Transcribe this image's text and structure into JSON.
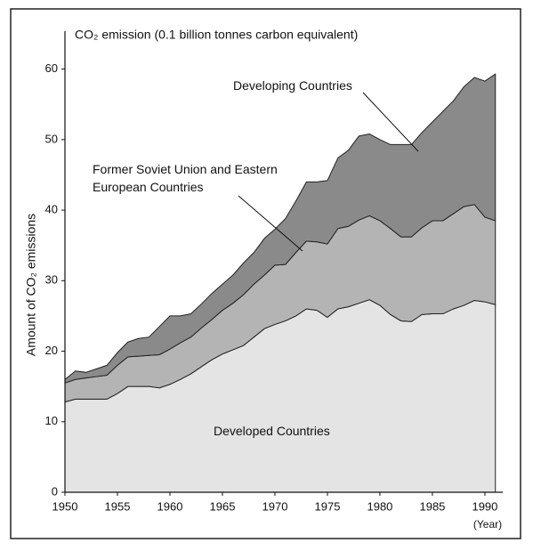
{
  "chart_data": {
    "type": "stacked-area",
    "title": "CO₂ emission (0.1 billion tonnes carbon equivalent)",
    "y_label": "Amount of CO₂ emissions",
    "x_label": "(Year)",
    "x": [
      1950,
      1951,
      1952,
      1953,
      1954,
      1955,
      1956,
      1957,
      1958,
      1959,
      1960,
      1961,
      1962,
      1963,
      1964,
      1965,
      1966,
      1967,
      1968,
      1969,
      1970,
      1971,
      1972,
      1973,
      1974,
      1975,
      1976,
      1977,
      1978,
      1979,
      1980,
      1981,
      1982,
      1983,
      1984,
      1985,
      1986,
      1987,
      1988,
      1989,
      1990,
      1991
    ],
    "series": [
      {
        "name": "Developed Countries",
        "color": "#e4e4e4",
        "values": [
          12.8,
          13.2,
          13.2,
          13.2,
          13.2,
          14.0,
          15.0,
          15.0,
          15.0,
          14.8,
          15.3,
          16.0,
          16.8,
          17.8,
          18.8,
          19.6,
          20.2,
          20.8,
          22.0,
          23.2,
          23.8,
          24.3,
          25.0,
          26.0,
          25.8,
          24.8,
          26.0,
          26.3,
          26.8,
          27.3,
          26.5,
          25.2,
          24.3,
          24.2,
          25.2,
          25.3,
          25.3,
          26.0,
          26.5,
          27.2,
          27.0,
          26.6
        ]
      },
      {
        "name": "Former Soviet Union and Eastern European Countries",
        "color": "#b4b4b4",
        "values": [
          2.7,
          2.8,
          3.0,
          3.2,
          3.4,
          4.0,
          4.2,
          4.3,
          4.4,
          4.7,
          5.0,
          5.2,
          5.2,
          5.5,
          5.7,
          6.2,
          6.6,
          7.2,
          7.5,
          7.6,
          8.4,
          8.0,
          9.0,
          9.6,
          9.7,
          10.4,
          11.4,
          11.4,
          11.8,
          11.9,
          12.0,
          12.2,
          11.9,
          12.0,
          12.3,
          13.2,
          13.2,
          13.5,
          14.0,
          13.6,
          12.0,
          11.9
        ]
      },
      {
        "name": "Developing Countries",
        "color": "#8a8a8a",
        "values": [
          0.5,
          1.2,
          0.8,
          1.1,
          1.4,
          1.8,
          2.1,
          2.5,
          2.6,
          4.0,
          4.7,
          3.8,
          3.3,
          3.4,
          3.7,
          3.7,
          4.0,
          4.5,
          4.5,
          5.2,
          5.1,
          6.5,
          7.3,
          8.4,
          8.5,
          9.0,
          10.0,
          10.8,
          11.9,
          11.6,
          11.5,
          11.9,
          13.1,
          13.1,
          13.5,
          14.0,
          15.5,
          16.0,
          17.0,
          18.0,
          19.3,
          20.8
        ]
      }
    ],
    "xlim": [
      1950,
      1991.7
    ],
    "xticks": [
      1950,
      1955,
      1960,
      1965,
      1970,
      1975,
      1980,
      1985,
      1990
    ],
    "ylim": [
      0,
      65
    ],
    "yticks": [
      0,
      10,
      20,
      30,
      40,
      50,
      60
    ]
  }
}
